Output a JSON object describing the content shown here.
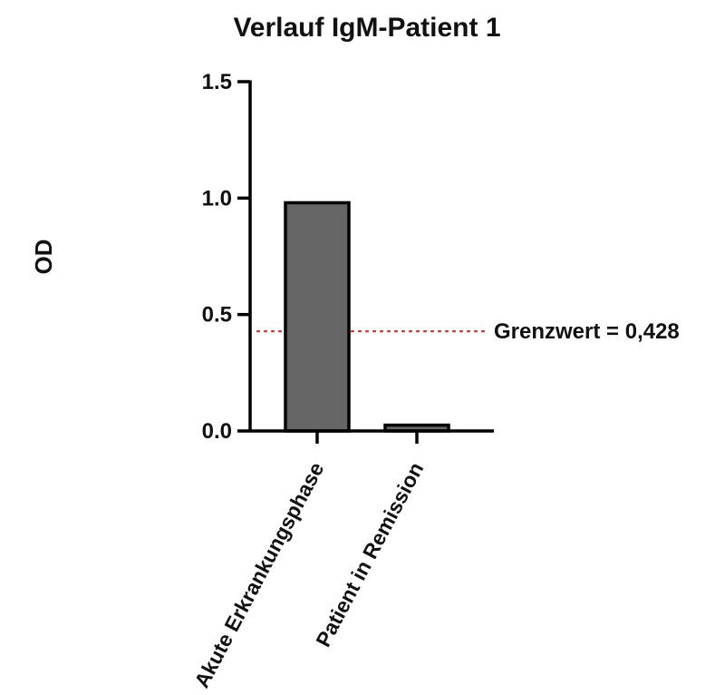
{
  "chart_data": {
    "type": "bar",
    "title": "Verlauf IgM-Patient 1",
    "xlabel": "",
    "ylabel": "OD",
    "categories": [
      "Akute Erkrankungsphase",
      "Patient in Remission"
    ],
    "values": [
      0.98,
      0.025
    ],
    "ylim": [
      0,
      1.5
    ],
    "yticks": [
      0.0,
      0.5,
      1.0,
      1.5
    ],
    "ytick_labels": [
      "0.0",
      "0.5",
      "1.0",
      "1.5"
    ],
    "grid": false,
    "legend": "none",
    "bar_color": "#666666",
    "bar_edge_color": "#000000",
    "reference_line": {
      "value": 0.428,
      "label": "Grenzwert = 0,428",
      "color": "#c0392b",
      "style": "dotted"
    }
  }
}
